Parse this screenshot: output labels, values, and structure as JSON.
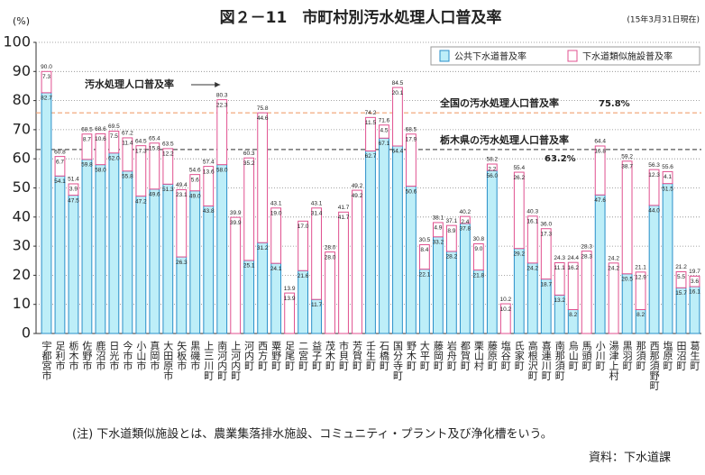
{
  "chart_data": {
    "type": "stacked_bar",
    "title": "図２－11　市町村別汚水処理人口普及率",
    "subtitle": "(15年3月31日現在)",
    "y_label": "(%)",
    "note": "(注) 下水道類似施設とは、農業集落排水施設、コミュニティ・プラント及び浄化槽をいう。",
    "source": "資料：下水道課",
    "categories": [
      "宇都宮市",
      "足利市",
      "栃木市",
      "佐野市",
      "鹿沼市",
      "日光市",
      "今市市",
      "小山市",
      "真岡市",
      "大田原市",
      "矢板市",
      "黒磯市",
      "上三川町",
      "南河内町",
      "上河内町",
      "河内町",
      "西方町",
      "粟野町",
      "足尾町",
      "二宮町",
      "益子町",
      "茂木町",
      "市貝町",
      "芳賀町",
      "壬生町",
      "石橋町",
      "国分寺町",
      "野木町",
      "大平町",
      "藤岡町",
      "岩舟町",
      "都賀町",
      "栗山村",
      "藤原町",
      "塩谷町",
      "氏家町",
      "高根沢町",
      "喜連川町",
      "南那須町",
      "烏山町",
      "馬頭町",
      "小川町",
      "湯津上村",
      "黒羽町",
      "那須町",
      "西那須野町",
      "塩原町",
      "田沼町",
      "葛生町"
    ],
    "series": [
      {
        "name": "公共下水道普及率",
        "color": "#bdeef8",
        "stroke": "#2a8fc8",
        "values": [
          82.7,
          54.1,
          47.5,
          59.8,
          58.0,
          62.0,
          55.8,
          47.2,
          49.6,
          51.3,
          26.3,
          49.0,
          43.8,
          58.0,
          null,
          25.1,
          31.2,
          24.1,
          null,
          21.6,
          11.7,
          null,
          null,
          null,
          62.7,
          67.1,
          64.4,
          50.6,
          22.1,
          33.2,
          28.2,
          37.8,
          21.8,
          56.0,
          null,
          29.2,
          24.2,
          18.7,
          13.2,
          8.2,
          null,
          47.6,
          null,
          20.5,
          8.2,
          44.0,
          51.5,
          15.7,
          16.1
        ],
        "value_labels": [
          "82.7",
          "54.1",
          "47.5",
          "59.8",
          "58.0",
          "62.0",
          "55.8",
          "47.2",
          "49.6",
          "51.3",
          "26.3",
          "49.0",
          "43.8",
          "58.0",
          null,
          "25.1",
          "31.2",
          "24.1",
          null,
          "21.6",
          "11.7",
          null,
          null,
          null,
          "62.7",
          "67.1",
          "64.4",
          "50.6",
          "22.1",
          "33.2",
          "28.2",
          "37.8",
          "21.8",
          "56.0",
          null,
          "29.2",
          "24.2",
          "18.7",
          "13.2",
          "8.2",
          null,
          "47.6",
          null,
          "20.5",
          "8.2",
          "44.0",
          "51.5",
          "15.7",
          "16.1"
        ]
      },
      {
        "name": "下水道類似施設普及率",
        "color": "#ffffff",
        "stroke": "#e0508f",
        "values": [
          7.3,
          6.7,
          3.9,
          8.7,
          10.6,
          7.5,
          11.4,
          17.3,
          15.8,
          12.2,
          23.1,
          5.6,
          13.6,
          22.3,
          39.9,
          35.2,
          44.6,
          19.0,
          13.9,
          17.0,
          31.4,
          28.0,
          41.7,
          49.2,
          11.5,
          4.5,
          20.1,
          17.9,
          8.4,
          4.9,
          8.9,
          2.4,
          9.0,
          2.2,
          10.2,
          26.2,
          16.1,
          17.3,
          11.1,
          16.2,
          28.3,
          16.8,
          24.2,
          38.7,
          12.9,
          12.3,
          4.1,
          5.5,
          3.6
        ],
        "value_labels": [
          "7.3",
          "6.7",
          "3.9",
          "8.7",
          "10.6",
          "7.5",
          "11.4",
          "17.3",
          "15.8",
          "12.2",
          "23.1",
          "5.6",
          "13.6",
          "22.3",
          "39.9",
          "35.2",
          "44.6",
          "19.0",
          "13.9",
          "17.0",
          "31.4",
          "28.0",
          "41.7",
          "49.2",
          "11.5",
          "4.5",
          "20.1",
          "17.9",
          "8.4",
          "4.9",
          "8.9",
          "2.4",
          "9.0",
          "2.2",
          "10.2",
          "26.2",
          "16.1",
          "17.3",
          "11.1",
          "16.2",
          "28.3",
          "16.8",
          "24.2",
          "38.7",
          "12.9",
          "12.3",
          "4.1",
          "5.5",
          "3.6"
        ]
      }
    ],
    "totals": {
      "values": [
        90.0,
        60.8,
        51.4,
        68.5,
        68.6,
        69.5,
        67.2,
        64.5,
        65.4,
        63.5,
        49.4,
        54.6,
        57.4,
        80.3,
        39.9,
        60.3,
        75.8,
        43.1,
        13.9,
        null,
        43.1,
        28.0,
        41.7,
        49.2,
        74.2,
        71.6,
        84.5,
        68.5,
        30.5,
        38.1,
        37.1,
        40.2,
        30.8,
        58.2,
        10.2,
        55.4,
        40.3,
        36.0,
        24.3,
        24.4,
        28.3,
        64.4,
        24.2,
        59.2,
        21.1,
        56.3,
        55.6,
        21.2,
        19.7
      ],
      "value_labels": [
        "90.0",
        "60.8",
        "51.4",
        "68.5",
        "68.6",
        "69.5",
        "67.2",
        "64.5",
        "65.4",
        "63.5",
        "49.4",
        "54.6",
        "57.4",
        "80.3",
        "39.9",
        "60.3",
        "75.8",
        "43.1",
        "13.9",
        null,
        "43.1",
        "28.0",
        "41.7",
        "49.2",
        "74.2",
        "71.6",
        "84.5",
        "68.5",
        "30.5",
        "38.1",
        "37.1",
        "40.2",
        "30.8",
        "58.2",
        "10.2",
        "55.4",
        "40.3",
        "36.0",
        "24.3",
        "24.4",
        "28.3",
        "64.4",
        "24.2",
        "59.2",
        "21.1",
        "56.3",
        "55.6",
        "21.2",
        "19.7"
      ]
    },
    "reference_lines": [
      {
        "label": "全国の汚水処理人口普及率",
        "value": 75.8,
        "value_label": "75.8%",
        "color": "#f0a070"
      },
      {
        "label": "栃木県の汚水処理人口普及率",
        "value": 63.2,
        "value_label": "63.2%",
        "color": "#555555"
      }
    ],
    "annotations": [
      {
        "text": "汚水処理人口普及率"
      }
    ],
    "ylim": [
      0,
      100
    ],
    "yticks": [
      0,
      10,
      20,
      30,
      40,
      50,
      60,
      70,
      80,
      90,
      100
    ],
    "grid": true,
    "legend": "top-right"
  }
}
